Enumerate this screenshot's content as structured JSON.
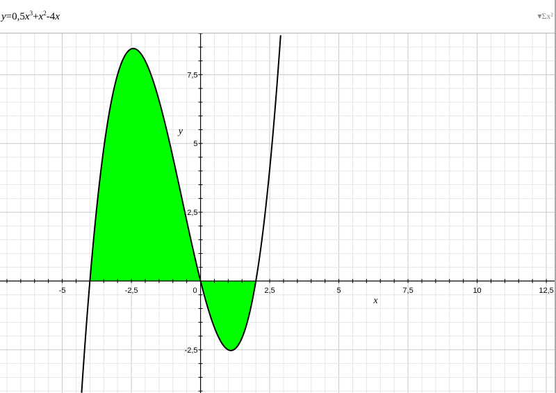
{
  "header": {
    "equation": {
      "y": "y",
      "eq": "=0,5",
      "x1": "x",
      "exp1": "3",
      "plus": "+",
      "x2": "x",
      "exp2": "2",
      "minus": "-4",
      "x3": "x"
    },
    "equation_menu_icon": "sigma-icon",
    "equation_menu_label": "▾Σx²"
  },
  "chart_data": {
    "type": "line",
    "function": "y=0.5x^3+x^2-4x",
    "coefficients": {
      "x3": 0.5,
      "x2": 1,
      "x1": -4,
      "x0": 0
    },
    "fill": {
      "from": -4,
      "to": 2,
      "color": "#00ff00"
    },
    "curve_color": "#000000",
    "xlim": [
      -7.25,
      12.85
    ],
    "ylim": [
      -4.07,
      9.0
    ],
    "grid": true,
    "grid_minor_step": 0.5,
    "grid_major_step": 2.5,
    "xlabel": "x",
    "ylabel": "y",
    "x_ticks": [
      {
        "v": -5,
        "label": "-5"
      },
      {
        "v": -2.5,
        "label": "-2,5"
      },
      {
        "v": 0,
        "label": "0"
      },
      {
        "v": 2.5,
        "label": "2,5"
      },
      {
        "v": 5,
        "label": "5"
      },
      {
        "v": 7.5,
        "label": "7,5"
      },
      {
        "v": 10,
        "label": "10"
      },
      {
        "v": 12.5,
        "label": "12,5"
      }
    ],
    "y_ticks": [
      {
        "v": -2.5,
        "label": "-2,5"
      },
      {
        "v": 2.5,
        "label": "2,5"
      },
      {
        "v": 5,
        "label": "5"
      },
      {
        "v": 7.5,
        "label": "7,5"
      }
    ]
  }
}
